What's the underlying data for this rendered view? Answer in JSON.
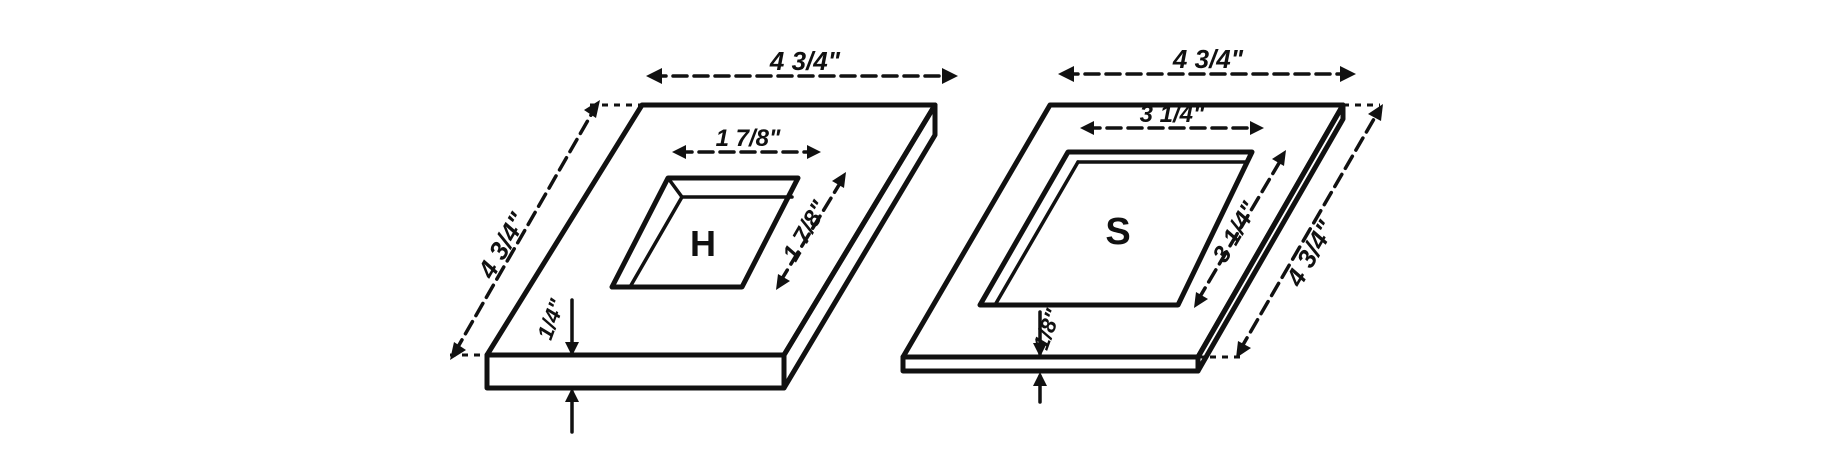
{
  "figure": {
    "plate_h": {
      "letter": "H",
      "top_width": "4 3/4\"",
      "left_height": "4 3/4\"",
      "opening_width": "1 7/8\"",
      "opening_height": "1 7/8\"",
      "thickness": "1/4\""
    },
    "plate_s": {
      "letter": "S",
      "top_width": "4 3/4\"",
      "right_height": "4 3/4\"",
      "opening_width": "3 1/4\"",
      "opening_height": "3 1/4\"",
      "thickness": "1/8\""
    }
  }
}
